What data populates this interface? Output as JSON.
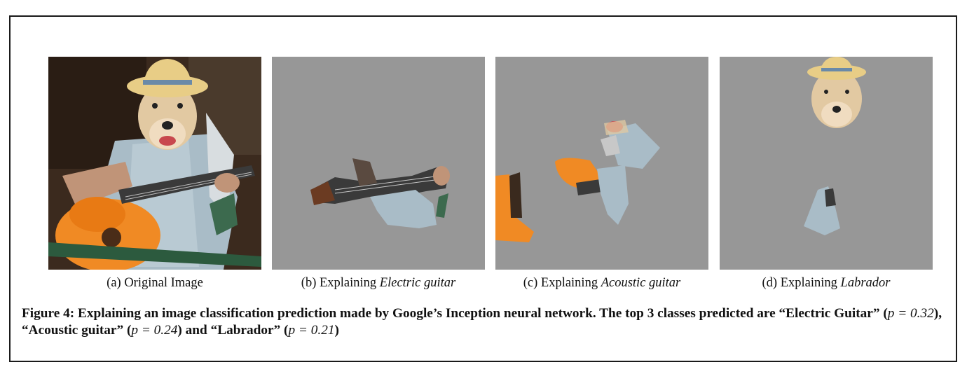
{
  "panels": [
    {
      "id": "a",
      "prefix": "(a) Original Image",
      "italic": ""
    },
    {
      "id": "b",
      "prefix": "(b) Explaining ",
      "italic": "Electric guitar"
    },
    {
      "id": "c",
      "prefix": "(c) Explaining ",
      "italic": "Acoustic guitar"
    },
    {
      "id": "d",
      "prefix": "(d) Explaining ",
      "italic": "Labrador"
    }
  ],
  "figure_caption": {
    "label": "Figure 4:",
    "text_1": " Explaining an image classification prediction made by Google’s Inception neural network. The top 3 classes predicted are “Electric Guitar” (",
    "p1": "p = 0.32",
    "text_2": "), “Acoustic guitar” (",
    "p2": "p = 0.24",
    "text_3": ") and “Labrador” (",
    "p3": "p = 0.21",
    "text_4": ")"
  },
  "colors": {
    "mask_gray": "#979797",
    "guitar_orange": "#f08a24",
    "shirt_blue": "#a9bcc7",
    "dog_fur": "#e2c9a2",
    "hat_straw": "#e8cd86",
    "background_dark": "#3b2a1e"
  }
}
